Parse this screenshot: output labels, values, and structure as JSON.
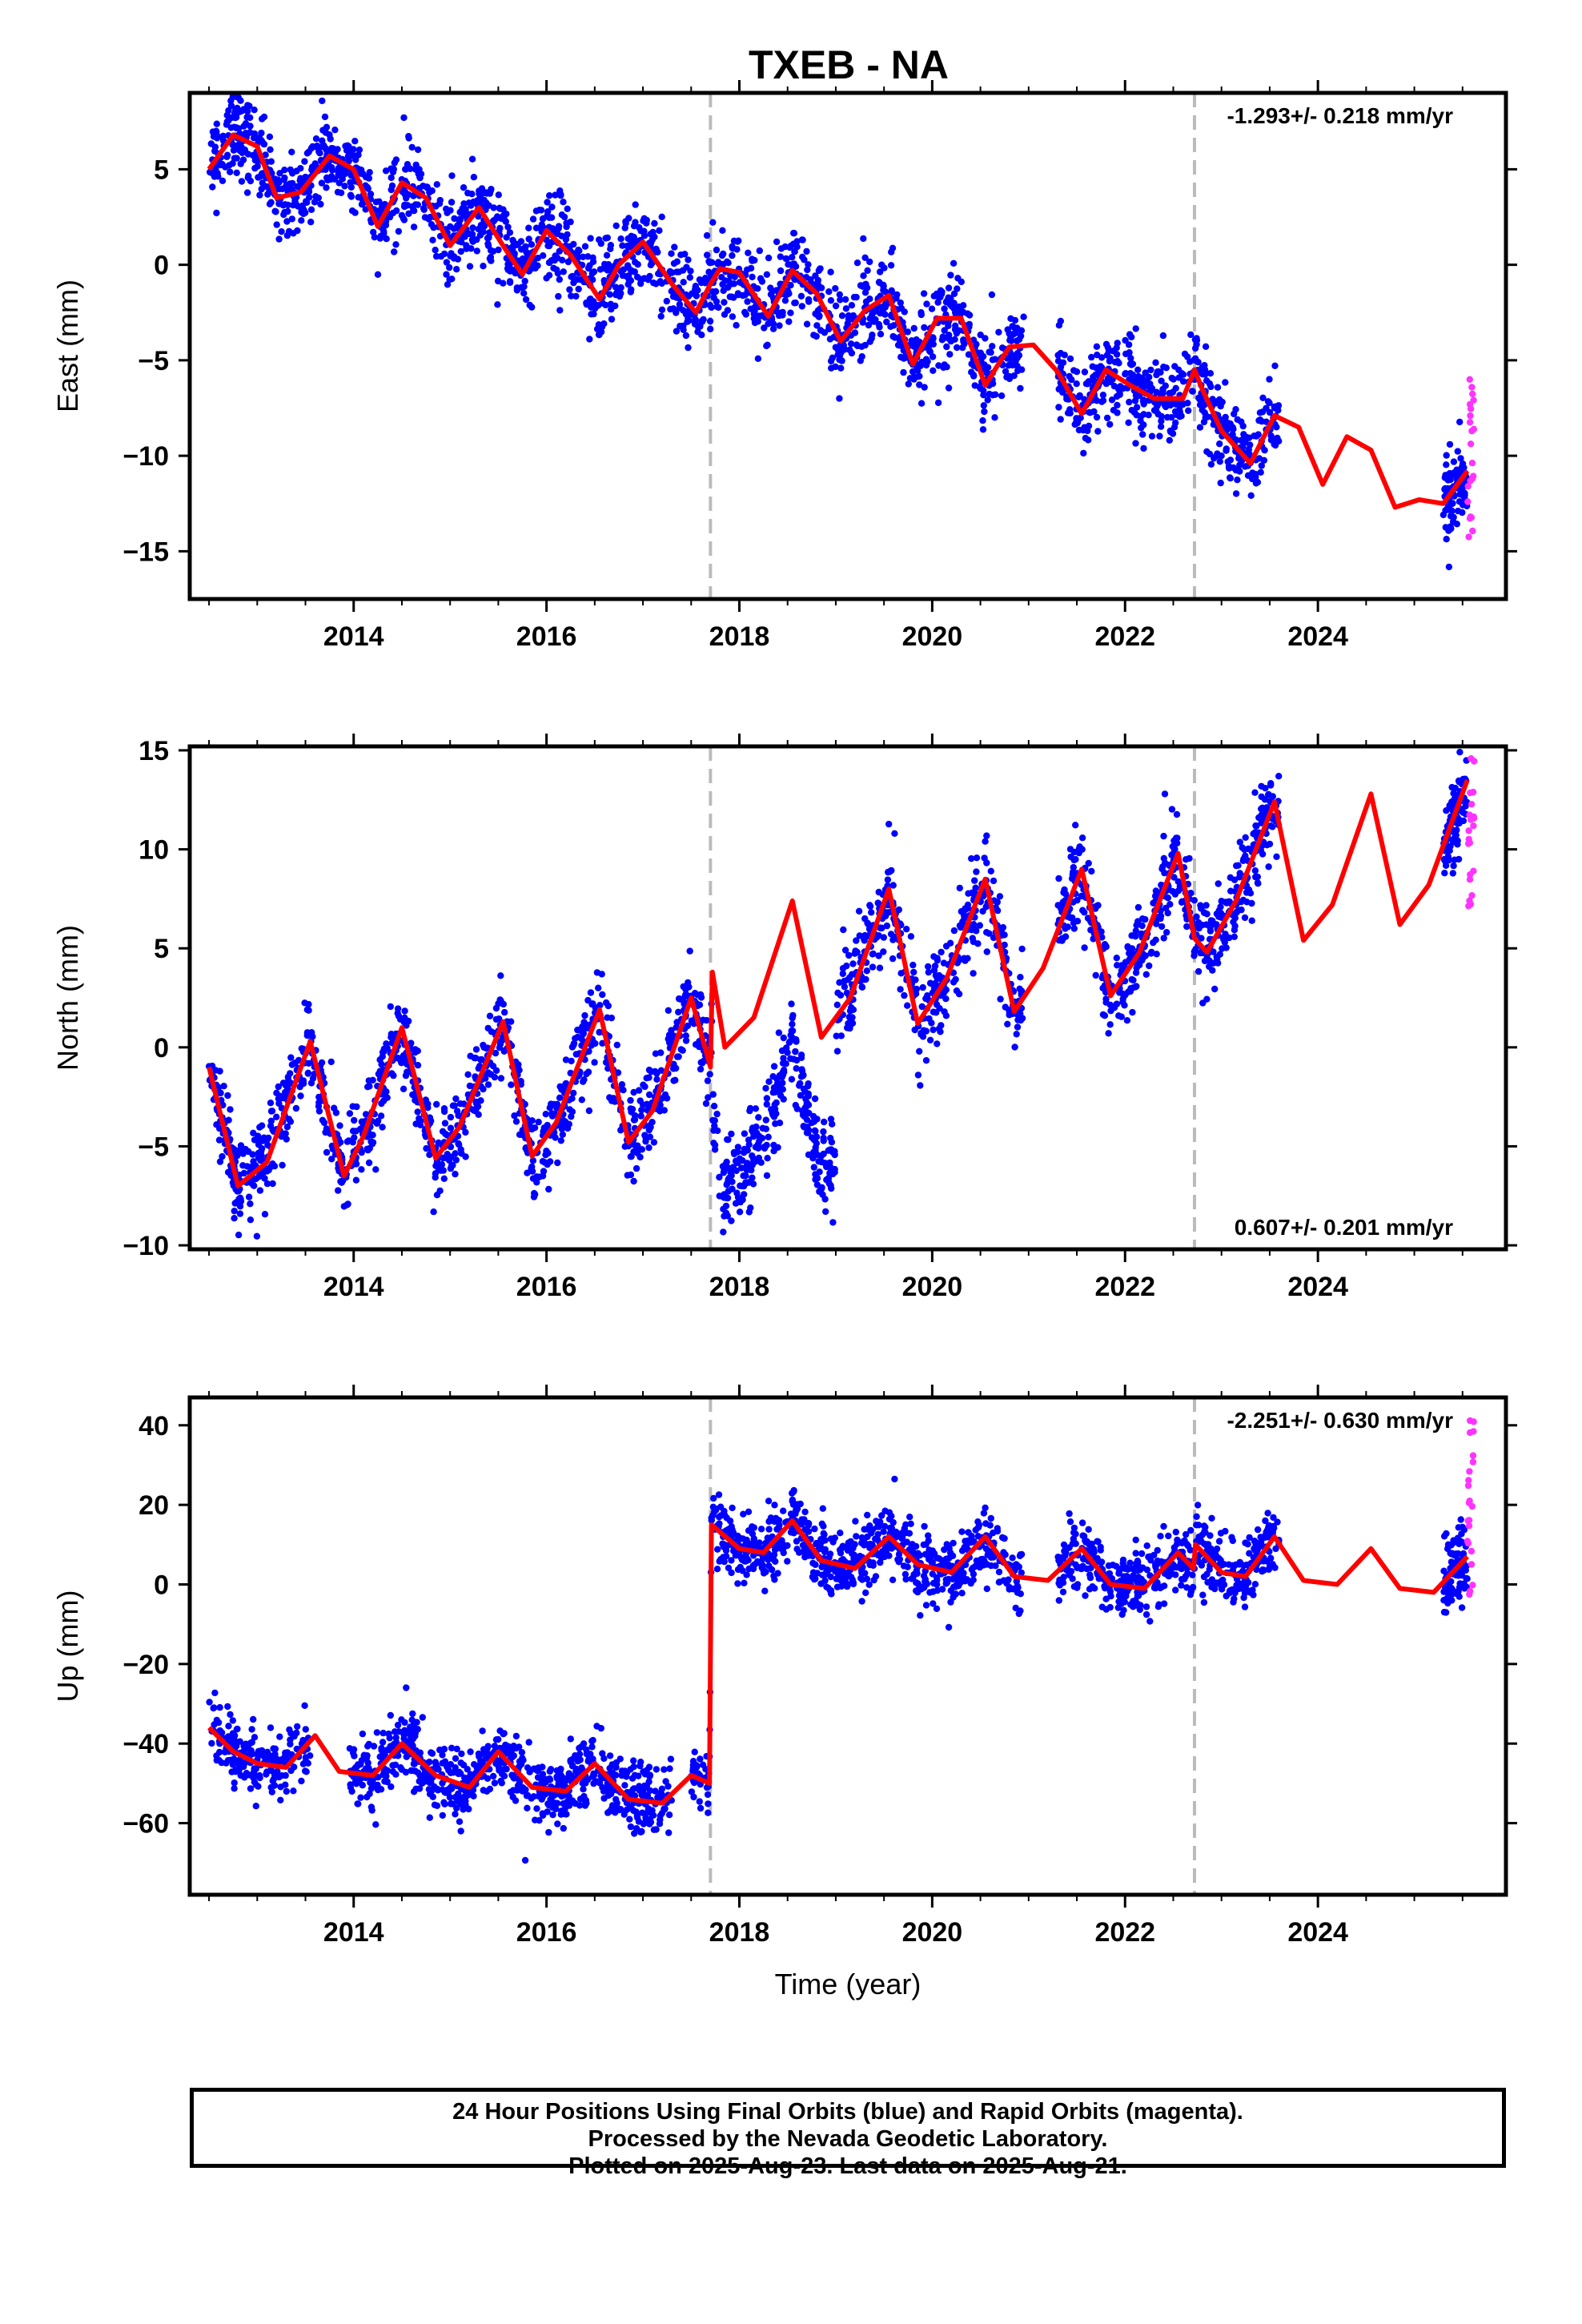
{
  "title": "TXEB - NA",
  "colors": {
    "final": "#0000ff",
    "rapid": "#ff33ff",
    "model": "#ff0000",
    "offset_line": "#bbbbbb"
  },
  "chart_data": [
    {
      "type": "scatter",
      "component": "East",
      "ylabel": "East (mm)",
      "xlabel": "",
      "xlim": [
        2012.3,
        2025.95
      ],
      "ylim": [
        -17.5,
        9
      ],
      "xticks": [
        2014,
        2016,
        2018,
        2020,
        2022,
        2024
      ],
      "yticks": [
        5,
        0,
        -5,
        -10,
        -15
      ],
      "ytick_labels": [
        "5",
        "0",
        "−5",
        "−10",
        "−15"
      ],
      "rate_label": "-1.293+/- 0.218 mm/yr",
      "rate_position": "top-right",
      "offset_lines_x": [
        2017.7,
        2022.72
      ],
      "final_orbits": {
        "x_range": [
          2012.5,
          2023.6
        ],
        "gaps": [],
        "resume_segment": [
          2025.3,
          2025.55
        ],
        "y_range": [
          -17,
          8
        ]
      },
      "rapid_orbits": {
        "x": [
          2025.55,
          2025.62
        ],
        "y_range": [
          -14.5,
          -5.5
        ]
      },
      "model_fit": {
        "knots_x": [
          2012.5,
          2012.75,
          2013.0,
          2013.2,
          2013.45,
          2013.75,
          2014.0,
          2014.25,
          2014.5,
          2014.75,
          2015.0,
          2015.3,
          2015.55,
          2015.75,
          2016.0,
          2016.25,
          2016.55,
          2016.75,
          2017.0,
          2017.3,
          2017.55,
          2017.7,
          2017.8,
          2018.0,
          2018.3,
          2018.55,
          2018.8,
          2019.05,
          2019.3,
          2019.55,
          2019.8,
          2020.05,
          2020.3,
          2020.55,
          2020.8,
          2021.05,
          2021.3,
          2021.55,
          2021.8,
          2022.05,
          2022.3,
          2022.6,
          2022.72,
          2022.8,
          2023.0,
          2023.3,
          2023.55,
          2023.8,
          2024.05,
          2024.3,
          2024.55,
          2024.8,
          2025.05,
          2025.3,
          2025.55
        ],
        "knots_y": [
          5.0,
          6.8,
          6.2,
          3.5,
          3.8,
          5.7,
          5.0,
          2.0,
          4.3,
          3.5,
          1.0,
          3.0,
          1.0,
          -0.5,
          1.8,
          0.5,
          -1.8,
          0.0,
          1.2,
          -1.0,
          -2.5,
          -1.0,
          -0.2,
          -0.4,
          -2.7,
          -0.3,
          -1.5,
          -4.0,
          -2.4,
          -1.6,
          -5.2,
          -2.8,
          -2.8,
          -6.3,
          -4.3,
          -4.2,
          -5.6,
          -7.8,
          -5.5,
          -6.3,
          -7.0,
          -7.0,
          -5.5,
          -6.5,
          -8.7,
          -10.4,
          -7.9,
          -8.5,
          -11.5,
          -9.0,
          -9.7,
          -12.7,
          -12.3,
          -12.5,
          -10.8
        ]
      }
    },
    {
      "type": "scatter",
      "component": "North",
      "ylabel": "North (mm)",
      "xlabel": "",
      "xlim": [
        2012.3,
        2025.95
      ],
      "ylim": [
        -10.2,
        15.2
      ],
      "xticks": [
        2014,
        2016,
        2018,
        2020,
        2022,
        2024
      ],
      "yticks": [
        15,
        10,
        5,
        0,
        -5,
        -10
      ],
      "ytick_labels": [
        "15",
        "10",
        "5",
        "0",
        "−5",
        "−10"
      ],
      "rate_label": "0.607+/- 0.201 mm/yr",
      "rate_position": "bottom-right",
      "offset_lines_x": [
        2017.7,
        2022.72
      ],
      "final_orbits": {
        "x_range": [
          2012.5,
          2023.6
        ],
        "note": "data between 2017.7 and 2019.0 remains near earlier level",
        "resume_segment": [
          2025.3,
          2025.55
        ],
        "y_range": [
          -9.5,
          14.7
        ]
      },
      "rapid_orbits": {
        "x": [
          2025.55,
          2025.62
        ],
        "y_range": [
          7,
          15
        ]
      },
      "model_fit": {
        "knots_x": [
          2012.5,
          2012.8,
          2013.1,
          2013.55,
          2013.9,
          2014.1,
          2014.5,
          2014.85,
          2015.1,
          2015.55,
          2015.85,
          2016.1,
          2016.55,
          2016.85,
          2017.1,
          2017.5,
          2017.7,
          2017.72,
          2017.85,
          2018.15,
          2018.55,
          2018.85,
          2019.15,
          2019.55,
          2019.85,
          2020.15,
          2020.55,
          2020.85,
          2021.15,
          2021.55,
          2021.85,
          2022.15,
          2022.55,
          2022.72,
          2022.85,
          2023.15,
          2023.55,
          2023.85,
          2024.15,
          2024.55,
          2024.85,
          2025.15,
          2025.55
        ],
        "knots_y": [
          -1.0,
          -7.0,
          -5.8,
          0.3,
          -6.5,
          -4.5,
          1.0,
          -5.6,
          -4.0,
          1.3,
          -5.5,
          -3.8,
          1.9,
          -4.8,
          -3.2,
          2.5,
          -1.0,
          3.8,
          0.0,
          1.5,
          7.4,
          0.5,
          2.5,
          8.0,
          1.2,
          3.5,
          8.5,
          1.8,
          4.0,
          9.0,
          2.6,
          4.8,
          9.8,
          5.5,
          4.8,
          7.4,
          12.4,
          5.4,
          7.2,
          12.8,
          6.2,
          8.2,
          13.5
        ]
      }
    },
    {
      "type": "scatter",
      "component": "Up",
      "ylabel": "Up (mm)",
      "xlabel": "Time (year)",
      "xlim": [
        2012.3,
        2025.95
      ],
      "ylim": [
        -78,
        47
      ],
      "xticks": [
        2014,
        2016,
        2018,
        2020,
        2022,
        2024
      ],
      "yticks": [
        40,
        20,
        0,
        -20,
        -40,
        -60
      ],
      "ytick_labels": [
        "40",
        "20",
        "0",
        "−20",
        "−40",
        "−60"
      ],
      "rate_label": "-2.251+/- 0.630 mm/yr",
      "rate_position": "top-right",
      "offset_lines_x": [
        2017.7,
        2022.72
      ],
      "final_orbits": {
        "x_range": [
          2012.5,
          2023.6
        ],
        "y_range": [
          -75,
          26
        ]
      },
      "rapid_orbits": {
        "x": [
          2025.55,
          2025.62
        ],
        "y_range": [
          -3,
          44
        ]
      },
      "model_fit": {
        "knots_x": [
          2012.5,
          2012.75,
          2013.0,
          2013.3,
          2013.6,
          2013.85,
          2014.2,
          2014.5,
          2014.85,
          2015.2,
          2015.5,
          2015.85,
          2016.2,
          2016.5,
          2016.85,
          2017.2,
          2017.5,
          2017.69,
          2017.71,
          2018.0,
          2018.25,
          2018.55,
          2018.85,
          2019.2,
          2019.55,
          2019.85,
          2020.2,
          2020.55,
          2020.85,
          2021.2,
          2021.55,
          2021.85,
          2022.2,
          2022.55,
          2022.71,
          2022.73,
          2023.0,
          2023.25,
          2023.55,
          2023.85,
          2024.2,
          2024.55,
          2024.85,
          2025.2,
          2025.55
        ],
        "knots_y": [
          -36,
          -42,
          -45,
          -46,
          -38,
          -47,
          -48,
          -40,
          -48,
          -51,
          -42,
          -51,
          -52,
          -45,
          -54,
          -55,
          -48,
          -50,
          15,
          9,
          8,
          16,
          6,
          4,
          12,
          5,
          3,
          12,
          2,
          1,
          9,
          0,
          -1,
          8,
          4,
          10,
          3,
          2,
          12,
          1,
          0,
          9,
          -1,
          -2,
          7
        ]
      }
    }
  ],
  "caption": {
    "line1": "24 Hour Positions Using Final Orbits (blue) and Rapid Orbits (magenta).",
    "line2": "Processed by the Nevada Geodetic Laboratory.",
    "line3": "Plotted on 2025-Aug-23. Last data on 2025-Aug-21."
  }
}
